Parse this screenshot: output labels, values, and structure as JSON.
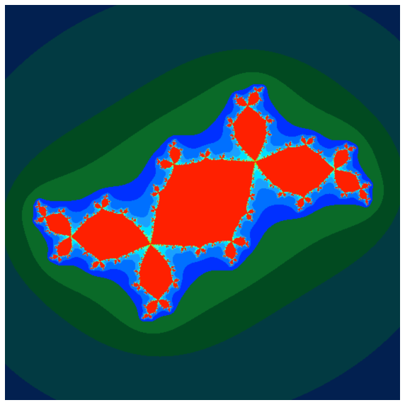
{
  "image": {
    "subject": "",
    "palette": {
      "outer": "#00008a",
      "band_1": "#022050",
      "band_2": "#023a42",
      "band_3": "#014a20",
      "band_4": "#0a6a28",
      "inner_blue": "#0030ff",
      "mid_blue": "#0070ff",
      "light_blue": "#1aa0ff",
      "cyan": "#00e0ff",
      "aqua": "#40ffd0",
      "green": "#60ff40",
      "yellow": "#ffff00",
      "orange": "#ff8000",
      "red": "#ff2000"
    }
  }
}
